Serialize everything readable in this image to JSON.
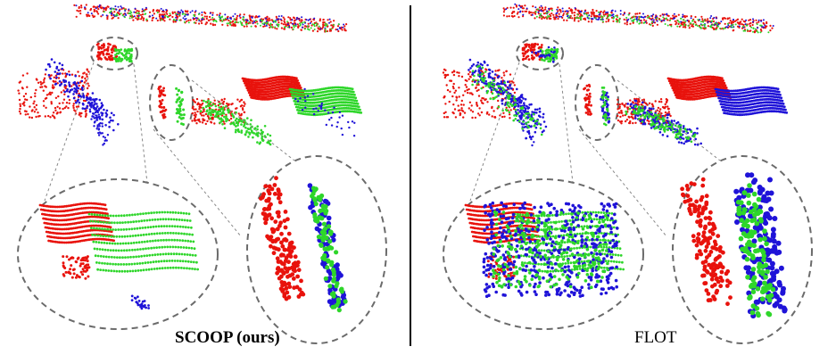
{
  "panels": {
    "left": {
      "caption": "SCOOP (ours)"
    },
    "right": {
      "caption": "FLOT"
    }
  },
  "colors": {
    "source": "#e8120c",
    "target_ground_truth": "#1f13d8",
    "warped": "#2ed62a",
    "divider": "#000000",
    "zoom_ellipse": "#6b6b6b"
  }
}
